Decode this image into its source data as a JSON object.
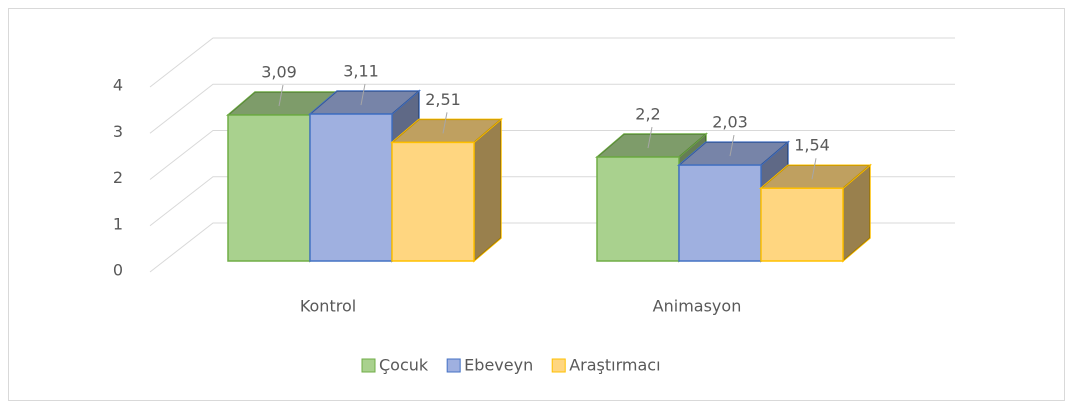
{
  "chart_data": {
    "type": "bar3d",
    "categories": [
      "Kontrol",
      "Animasyon"
    ],
    "series": [
      {
        "name": "Çocuk",
        "color": "#a9d18e",
        "edge_color": "#70ad47",
        "values": [
          3.09,
          2.2
        ],
        "value_labels": [
          "3,09",
          "2,2"
        ]
      },
      {
        "name": "Ebeveyn",
        "color": "#9fb0e0",
        "edge_color": "#4472c4",
        "values": [
          3.11,
          2.03
        ],
        "value_labels": [
          "3,11",
          "2,03"
        ]
      },
      {
        "name": "Araştırmacı",
        "color": "#ffd680",
        "edge_color": "#ffc000",
        "values": [
          2.51,
          1.54
        ],
        "value_labels": [
          "2,51",
          "1,54"
        ]
      }
    ],
    "ylim": [
      0,
      4
    ],
    "yticks": [
      0,
      1,
      2,
      3,
      4
    ],
    "grid": true,
    "legend": "bottom"
  }
}
